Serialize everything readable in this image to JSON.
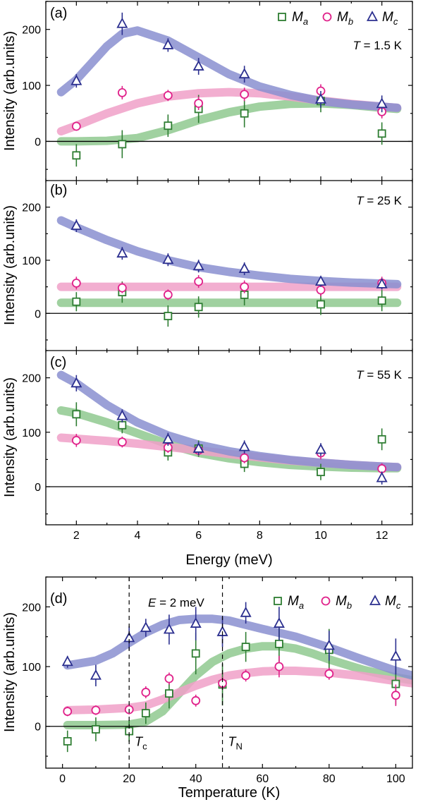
{
  "legend": {
    "series": [
      {
        "label": "M",
        "sub": "a",
        "color": "#2e7d32",
        "marker": "square-marker"
      },
      {
        "label": "M",
        "sub": "b",
        "color": "#e0218a",
        "marker": "circle-marker"
      },
      {
        "label": "M",
        "sub": "c",
        "color": "#2b2f8f",
        "marker": "triangle-marker"
      }
    ],
    "placement": "top-right"
  },
  "curve_colors": {
    "a": "#8fc98f",
    "b": "#f0a0c8",
    "c": "#8a8fd0"
  },
  "shared_x_label": "Energy (meV)",
  "chart_data": [
    {
      "id": "a",
      "type": "scatter",
      "panel_label": "(a)",
      "annotation": "T = 1.5 K",
      "xlabel": "Energy (meV)",
      "ylabel": "Intensity (arb.units)",
      "xlim": [
        1,
        13
      ],
      "ylim": [
        -70,
        250
      ],
      "xticks": [
        2,
        4,
        6,
        8,
        10,
        12
      ],
      "yticks": [
        0,
        100,
        200
      ],
      "x": [
        2,
        3.5,
        5,
        6,
        7.5,
        10,
        12
      ],
      "series": [
        {
          "key": "a",
          "name": "Ma",
          "values": [
            -25,
            -5,
            28,
            58,
            50,
            72,
            14
          ],
          "errors": [
            20,
            25,
            20,
            25,
            25,
            20,
            20
          ],
          "fit": [
            [
              1.5,
              0
            ],
            [
              2,
              0
            ],
            [
              3,
              1
            ],
            [
              4,
              6
            ],
            [
              5,
              20
            ],
            [
              6,
              38
            ],
            [
              7,
              52
            ],
            [
              8,
              62
            ],
            [
              9,
              67
            ],
            [
              10,
              68
            ],
            [
              11,
              65
            ],
            [
              12,
              60
            ],
            [
              12.5,
              58
            ]
          ]
        },
        {
          "key": "b",
          "name": "Mb",
          "values": [
            27,
            87,
            82,
            68,
            84,
            90,
            53
          ],
          "errors": [
            8,
            12,
            10,
            12,
            12,
            12,
            12
          ],
          "fit": [
            [
              1.5,
              18
            ],
            [
              2,
              28
            ],
            [
              3,
              50
            ],
            [
              4,
              68
            ],
            [
              5,
              80
            ],
            [
              6,
              86
            ],
            [
              7,
              88
            ],
            [
              8,
              86
            ],
            [
              9,
              80
            ],
            [
              10,
              73
            ],
            [
              11,
              67
            ],
            [
              12,
              62
            ],
            [
              12.5,
              60
            ]
          ]
        },
        {
          "key": "c",
          "name": "Mc",
          "values": [
            108,
            210,
            172,
            134,
            120,
            75,
            67
          ],
          "errors": [
            12,
            20,
            12,
            15,
            15,
            15,
            15
          ],
          "fit": [
            [
              1.5,
              88
            ],
            [
              2,
              110
            ],
            [
              3,
              170
            ],
            [
              3.5,
              192
            ],
            [
              4,
              198
            ],
            [
              5,
              180
            ],
            [
              6,
              150
            ],
            [
              7,
              120
            ],
            [
              8,
              98
            ],
            [
              9,
              83
            ],
            [
              10,
              72
            ],
            [
              11,
              66
            ],
            [
              12,
              62
            ],
            [
              12.5,
              60
            ]
          ]
        }
      ]
    },
    {
      "id": "b",
      "type": "scatter",
      "panel_label": "(b)",
      "annotation": "T = 25 K",
      "xlabel": "Energy (meV)",
      "ylabel": "Intensity (arb.units)",
      "xlim": [
        1,
        13
      ],
      "ylim": [
        -70,
        250
      ],
      "xticks": [
        2,
        4,
        6,
        8,
        10,
        12
      ],
      "yticks": [
        0,
        100,
        200
      ],
      "x": [
        2,
        3.5,
        5,
        6,
        7.5,
        10,
        12
      ],
      "series": [
        {
          "key": "a",
          "name": "Ma",
          "values": [
            22,
            40,
            -5,
            12,
            35,
            17,
            24
          ],
          "errors": [
            18,
            20,
            20,
            20,
            20,
            20,
            20
          ],
          "fit": [
            [
              1.5,
              20
            ],
            [
              12.5,
              20
            ]
          ]
        },
        {
          "key": "b",
          "name": "Mb",
          "values": [
            57,
            48,
            35,
            60,
            50,
            44,
            57
          ],
          "errors": [
            12,
            10,
            10,
            12,
            12,
            12,
            12
          ],
          "fit": [
            [
              1.5,
              50
            ],
            [
              12.5,
              50
            ]
          ]
        },
        {
          "key": "c",
          "name": "Mc",
          "values": [
            165,
            113,
            101,
            89,
            84,
            60,
            55
          ],
          "errors": [
            12,
            12,
            12,
            12,
            12,
            10,
            10
          ],
          "fit": [
            [
              1.5,
              175
            ],
            [
              2,
              162
            ],
            [
              3,
              138
            ],
            [
              4,
              117
            ],
            [
              5,
              100
            ],
            [
              6,
              87
            ],
            [
              7,
              78
            ],
            [
              8,
              71
            ],
            [
              9,
              65
            ],
            [
              10,
              61
            ],
            [
              11,
              58
            ],
            [
              12,
              56
            ],
            [
              12.5,
              55
            ]
          ]
        }
      ]
    },
    {
      "id": "c",
      "type": "scatter",
      "panel_label": "(c)",
      "annotation": "T = 55 K",
      "xlabel": "Energy (meV)",
      "ylabel": "Intensity (arb.units)",
      "xlim": [
        1,
        13
      ],
      "ylim": [
        -70,
        250
      ],
      "xticks": [
        2,
        4,
        6,
        8,
        10,
        12
      ],
      "yticks": [
        0,
        100,
        200
      ],
      "x": [
        2,
        3.5,
        5,
        6,
        7.5,
        10,
        12
      ],
      "series": [
        {
          "key": "a",
          "name": "Ma",
          "values": [
            133,
            113,
            63,
            70,
            42,
            27,
            87
          ],
          "errors": [
            22,
            15,
            15,
            15,
            15,
            15,
            20
          ],
          "fit": [
            [
              1.5,
              140
            ],
            [
              2,
              135
            ],
            [
              3,
              118
            ],
            [
              4,
              98
            ],
            [
              5,
              78
            ],
            [
              6,
              62
            ],
            [
              7,
              52
            ],
            [
              8,
              45
            ],
            [
              9,
              40
            ],
            [
              10,
              37
            ],
            [
              11,
              35
            ],
            [
              12,
              34
            ],
            [
              12.5,
              34
            ]
          ]
        },
        {
          "key": "b",
          "name": "Mb",
          "values": [
            85,
            82,
            72,
            67,
            53,
            62,
            33
          ],
          "errors": [
            12,
            10,
            10,
            10,
            10,
            12,
            10
          ],
          "fit": [
            [
              1.5,
              90
            ],
            [
              2,
              88
            ],
            [
              3,
              84
            ],
            [
              4,
              79
            ],
            [
              5,
              73
            ],
            [
              6,
              67
            ],
            [
              7,
              60
            ],
            [
              8,
              54
            ],
            [
              9,
              48
            ],
            [
              10,
              44
            ],
            [
              11,
              40
            ],
            [
              12,
              37
            ],
            [
              12.5,
              36
            ]
          ]
        },
        {
          "key": "c",
          "name": "Mc",
          "values": [
            190,
            130,
            87,
            70,
            73,
            68,
            16
          ],
          "errors": [
            15,
            12,
            12,
            12,
            12,
            12,
            12
          ],
          "fit": [
            [
              1.5,
              205
            ],
            [
              2,
              190
            ],
            [
              3,
              150
            ],
            [
              4,
              118
            ],
            [
              5,
              94
            ],
            [
              6,
              77
            ],
            [
              7,
              65
            ],
            [
              8,
              56
            ],
            [
              9,
              49
            ],
            [
              10,
              44
            ],
            [
              11,
              40
            ],
            [
              12,
              37
            ],
            [
              12.5,
              36
            ]
          ]
        }
      ]
    },
    {
      "id": "d",
      "type": "scatter",
      "panel_label": "(d)",
      "annotation": "E = 2 meV",
      "xlabel": "Temperature (K)",
      "ylabel": "Intensity (arb.units)",
      "xlim": [
        -5,
        105
      ],
      "ylim": [
        -70,
        250
      ],
      "xticks": [
        0,
        20,
        40,
        60,
        80,
        100
      ],
      "yticks": [
        0,
        100,
        200
      ],
      "vlines": [
        {
          "x": 20,
          "label": "T",
          "sub": "c"
        },
        {
          "x": 48,
          "label": "T",
          "sub": "N"
        }
      ],
      "x": [
        1.5,
        10,
        20,
        25,
        32,
        40,
        48,
        55,
        65,
        80,
        100
      ],
      "series": [
        {
          "key": "a",
          "name": "Ma",
          "values": [
            -25,
            -5,
            -8,
            22,
            55,
            122,
            70,
            133,
            138,
            128,
            71
          ],
          "errors": [
            18,
            20,
            18,
            18,
            25,
            35,
            35,
            25,
            30,
            35,
            35
          ],
          "fit": [
            [
              1.5,
              2
            ],
            [
              10,
              2
            ],
            [
              20,
              3
            ],
            [
              25,
              8
            ],
            [
              30,
              25
            ],
            [
              35,
              55
            ],
            [
              40,
              85
            ],
            [
              45,
              108
            ],
            [
              50,
              122
            ],
            [
              55,
              130
            ],
            [
              60,
              134
            ],
            [
              65,
              134
            ],
            [
              70,
              130
            ],
            [
              75,
              122
            ],
            [
              80,
              112
            ],
            [
              90,
              95
            ],
            [
              100,
              82
            ],
            [
              105,
              77
            ]
          ]
        },
        {
          "key": "b",
          "name": "Mb",
          "values": [
            25,
            27,
            28,
            57,
            80,
            43,
            72,
            85,
            100,
            88,
            52
          ],
          "errors": [
            8,
            8,
            8,
            10,
            10,
            10,
            10,
            10,
            18,
            10,
            18
          ],
          "fit": [
            [
              1.5,
              27
            ],
            [
              10,
              28
            ],
            [
              20,
              31
            ],
            [
              25,
              35
            ],
            [
              30,
              45
            ],
            [
              35,
              57
            ],
            [
              40,
              68
            ],
            [
              45,
              78
            ],
            [
              50,
              85
            ],
            [
              55,
              89
            ],
            [
              60,
              92
            ],
            [
              65,
              93
            ],
            [
              70,
              93
            ],
            [
              80,
              90
            ],
            [
              90,
              84
            ],
            [
              100,
              76
            ],
            [
              105,
              72
            ]
          ]
        },
        {
          "key": "c",
          "name": "Mc",
          "values": [
            108,
            85,
            148,
            165,
            162,
            172,
            158,
            190,
            172,
            135,
            117
          ],
          "errors": [
            10,
            18,
            20,
            15,
            25,
            28,
            25,
            18,
            28,
            25,
            30
          ],
          "fit": [
            [
              1.5,
              102
            ],
            [
              10,
              110
            ],
            [
              15,
              122
            ],
            [
              20,
              140
            ],
            [
              25,
              157
            ],
            [
              30,
              170
            ],
            [
              35,
              178
            ],
            [
              40,
              180
            ],
            [
              45,
              180
            ],
            [
              50,
              177
            ],
            [
              55,
              170
            ],
            [
              60,
              163
            ],
            [
              70,
              150
            ],
            [
              80,
              132
            ],
            [
              90,
              112
            ],
            [
              100,
              93
            ],
            [
              105,
              85
            ]
          ]
        }
      ]
    }
  ]
}
